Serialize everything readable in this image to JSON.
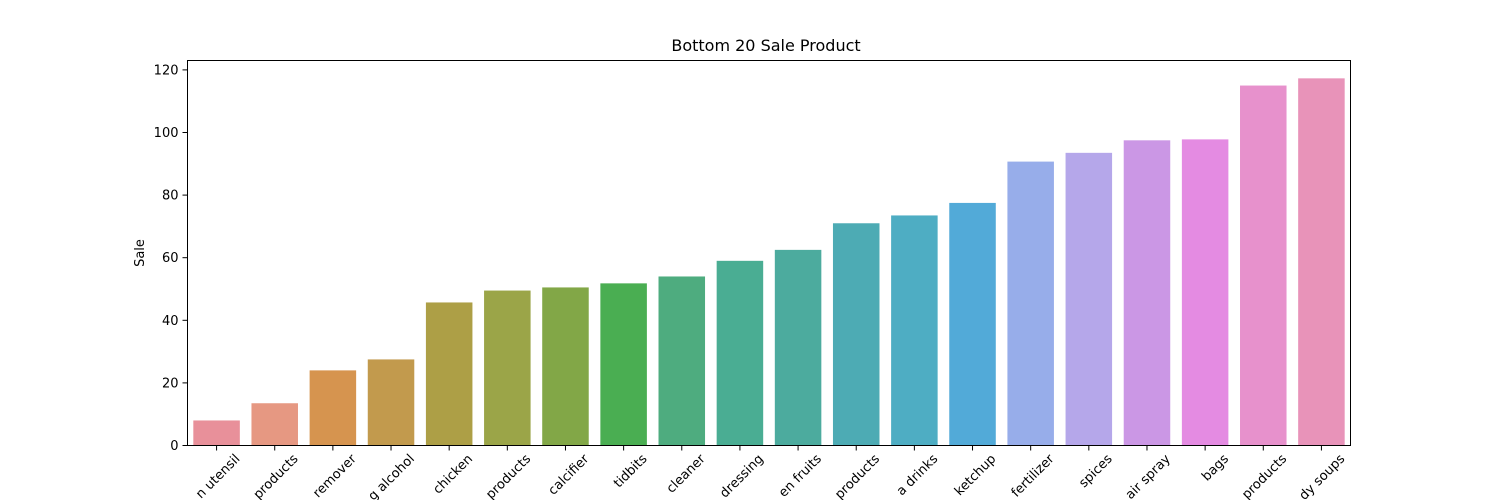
{
  "chart_data": {
    "type": "bar",
    "title": "Bottom 20 Sale Product",
    "xlabel": "",
    "ylabel": "Sale",
    "ylim": [
      0,
      123
    ],
    "yticks": [
      0,
      20,
      40,
      60,
      80,
      100,
      120
    ],
    "grid": false,
    "categories": [
      "n utensil",
      "products",
      "remover",
      "g alcohol",
      "chicken",
      "products",
      "calcifier",
      "tidbits",
      "cleaner",
      "dressing",
      "en fruits",
      "products",
      "a drinks",
      "ketchup",
      "fertilizer",
      "spices",
      "air spray",
      "bags",
      "products",
      "dy soups"
    ],
    "values": [
      8,
      13.5,
      24,
      27.5,
      45.7,
      49.5,
      50.5,
      51.8,
      54,
      59,
      62.5,
      71,
      73.5,
      77.5,
      90.7,
      93.5,
      97.5,
      97.8,
      115,
      117.3
    ],
    "colors": [
      "#e8909a",
      "#e69882",
      "#d6944f",
      "#c29a4d",
      "#ad9f46",
      "#9ba548",
      "#82a747",
      "#4aae52",
      "#4eac7f",
      "#4aad93",
      "#4cab9e",
      "#4dabb4",
      "#4eadc3",
      "#52aad8",
      "#97adea",
      "#b5a7ea",
      "#cb97e5",
      "#e48be2",
      "#e791cc",
      "#e893b9"
    ]
  }
}
